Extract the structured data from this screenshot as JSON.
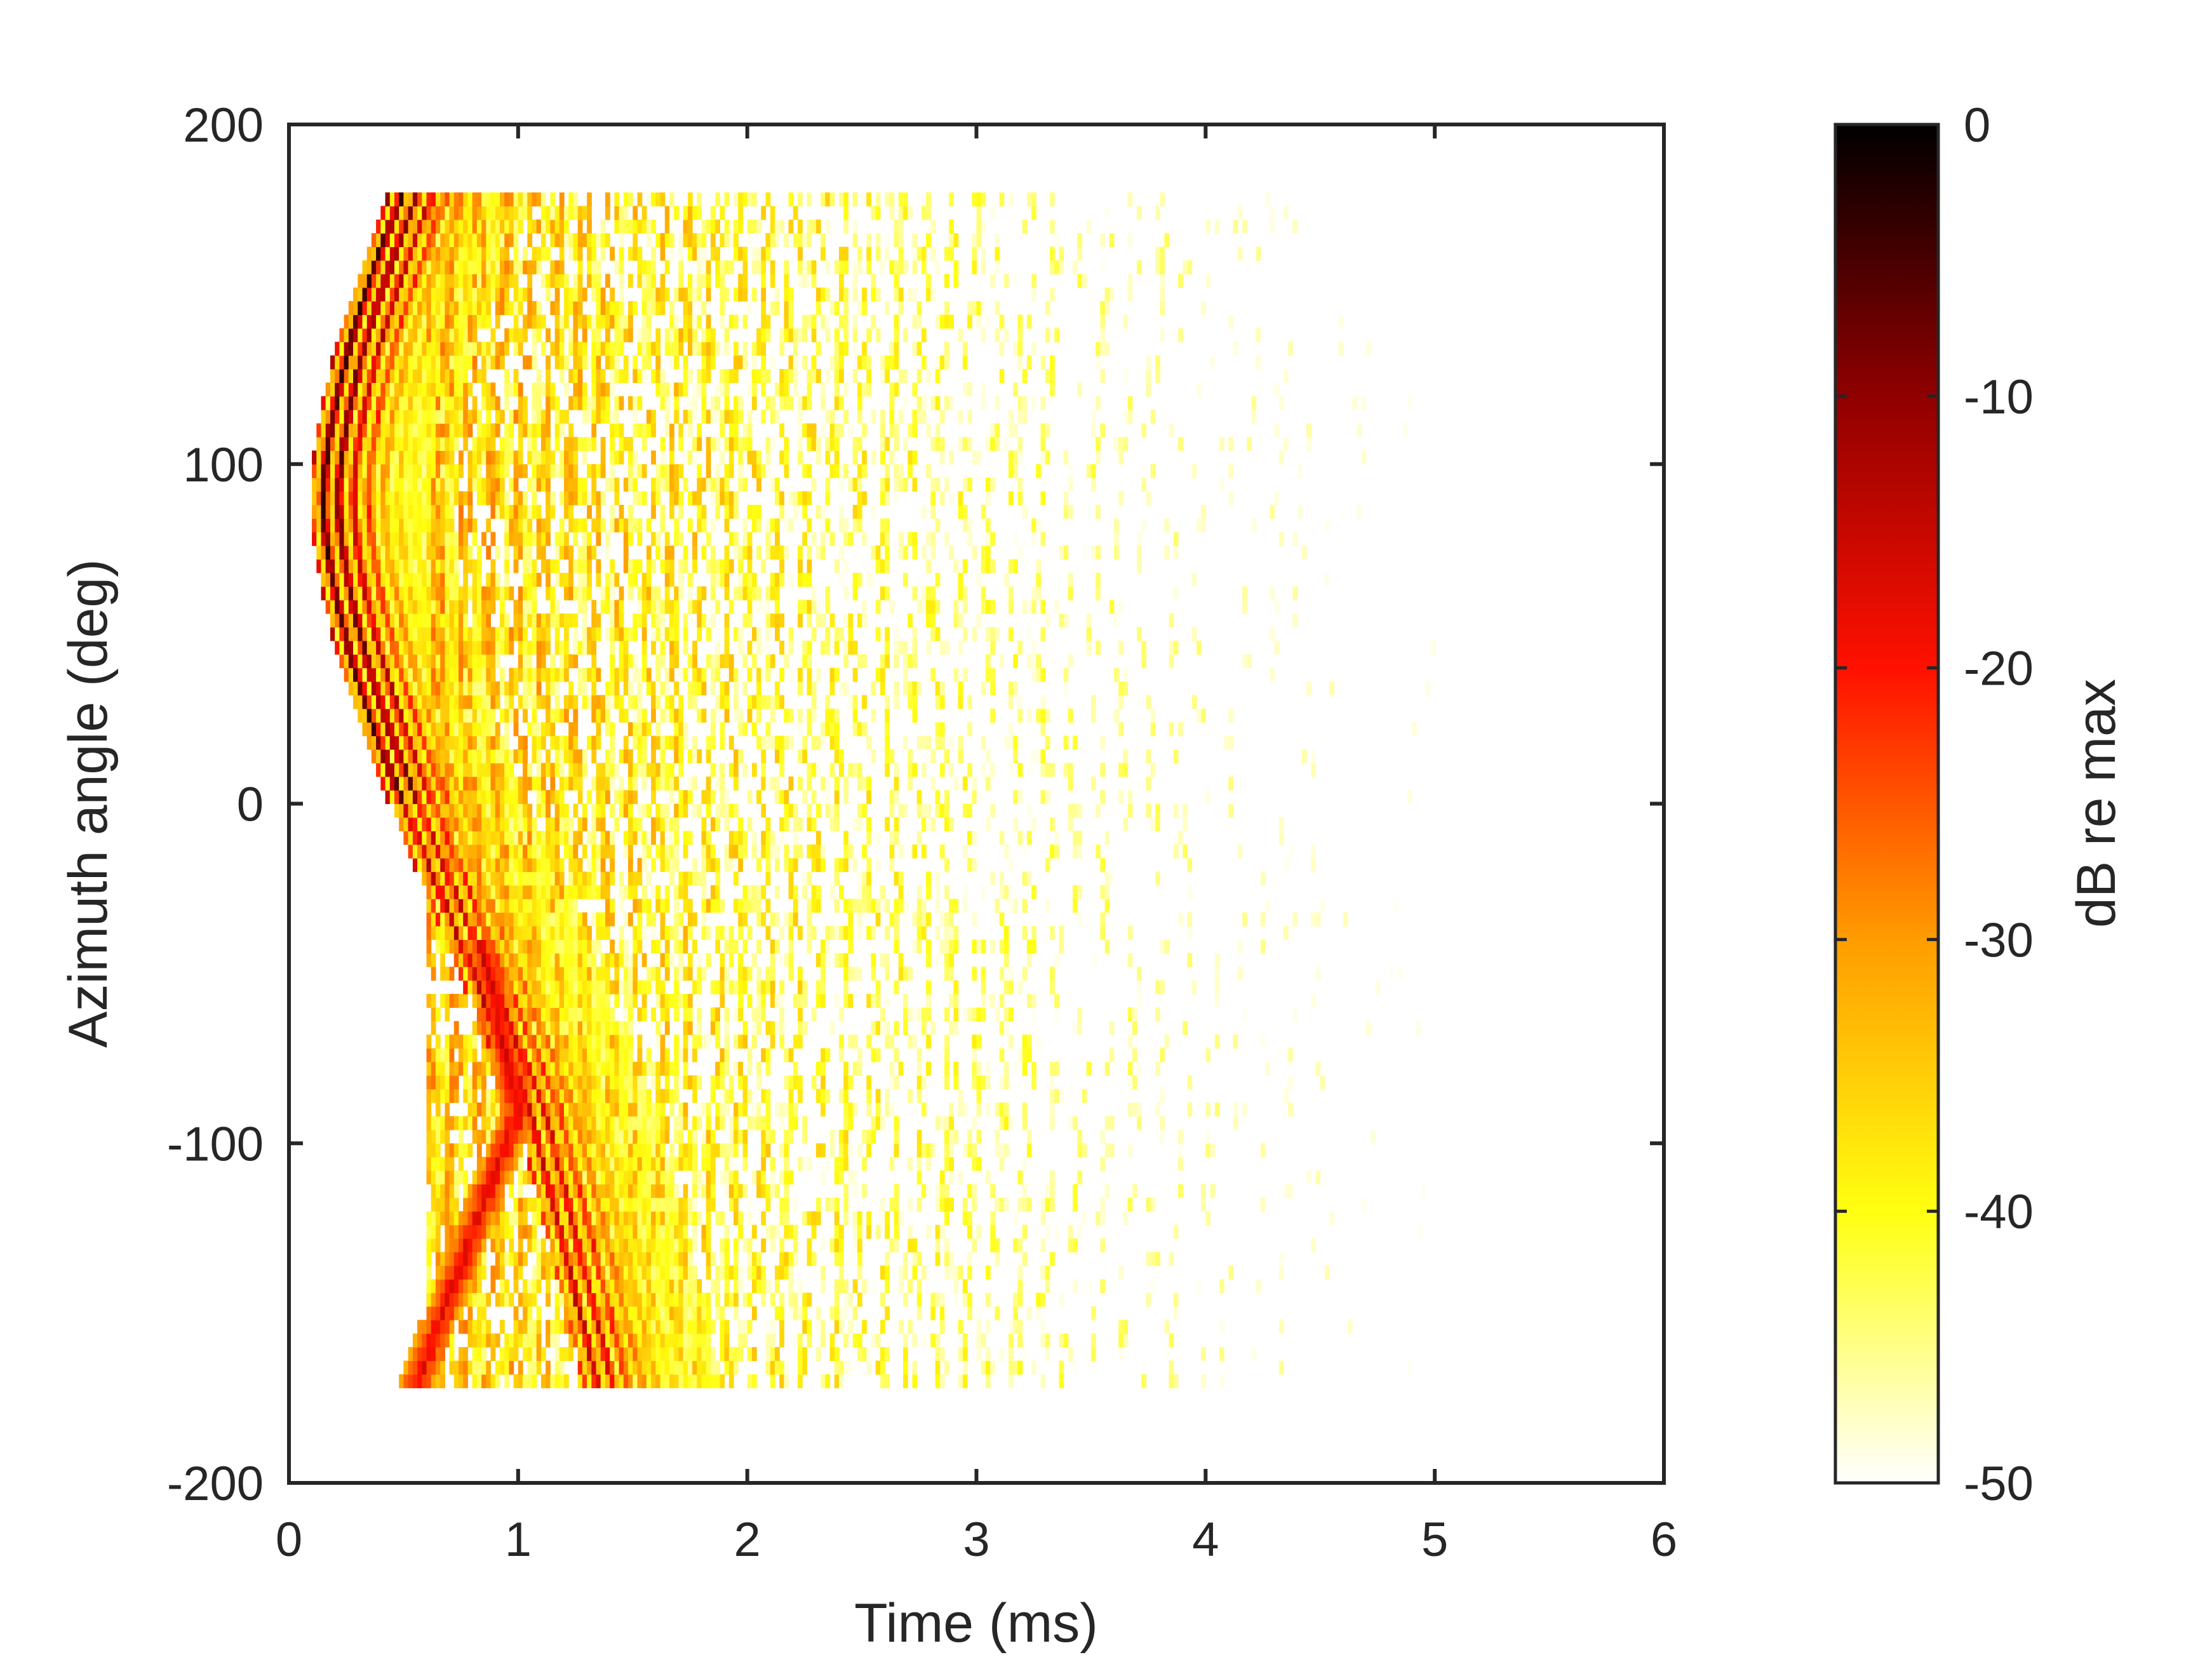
{
  "chart_data": {
    "type": "heatmap",
    "title": "",
    "xlabel": "Time (ms)",
    "ylabel": "Azimuth angle (deg)",
    "xlim": [
      0,
      6
    ],
    "ylim": [
      -200,
      200
    ],
    "x_ticks": [
      0,
      1,
      2,
      3,
      4,
      5,
      6
    ],
    "x_tick_labels": [
      "0",
      "1",
      "2",
      "3",
      "4",
      "5",
      "6"
    ],
    "y_ticks": [
      -200,
      -100,
      0,
      100,
      200
    ],
    "y_tick_labels": [
      "-200",
      "-100",
      "0",
      "100",
      "200"
    ],
    "grid": false,
    "data_extent": {
      "time_ms": [
        0.1,
        5.0
      ],
      "azimuth_deg": [
        -172,
        180
      ]
    },
    "colorbar": {
      "label": "dB re max",
      "range": [
        -50,
        0
      ],
      "ticks": [
        0,
        -10,
        -20,
        -30,
        -40,
        -50
      ],
      "tick_labels": [
        "0",
        "-10",
        "-20",
        "-30",
        "-40",
        "-50"
      ],
      "colormap": "hot (inverted)",
      "stops": [
        {
          "value": 0,
          "color": "#000000"
        },
        {
          "value": -10,
          "color": "#900000"
        },
        {
          "value": -20,
          "color": "#ff1000"
        },
        {
          "value": -30,
          "color": "#ff9c00"
        },
        {
          "value": -40,
          "color": "#ffff10"
        },
        {
          "value": -50,
          "color": "#ffffff"
        }
      ]
    },
    "features": [
      {
        "name": "direct arrival",
        "peak_db": -2,
        "apex": {
          "azimuth_deg": 90,
          "time_ms": 0.15
        },
        "ends": [
          {
            "azimuth_deg": 180,
            "time_ms": 0.5
          },
          {
            "azimuth_deg": 0,
            "time_ms": 0.5
          },
          {
            "azimuth_deg": -90,
            "time_ms": 1.05
          },
          {
            "azimuth_deg": -172,
            "time_ms": 1.4
          }
        ]
      },
      {
        "name": "early reflection",
        "peak_db": -15,
        "apex": {
          "azimuth_deg": -90,
          "time_ms": 1.0
        },
        "ends": [
          {
            "azimuth_deg": -172,
            "time_ms": 0.55
          }
        ]
      },
      {
        "name": "diffuse decay",
        "level_db": [
          -30,
          -48
        ],
        "time_ms": [
          1.0,
          5.0
        ]
      }
    ]
  }
}
